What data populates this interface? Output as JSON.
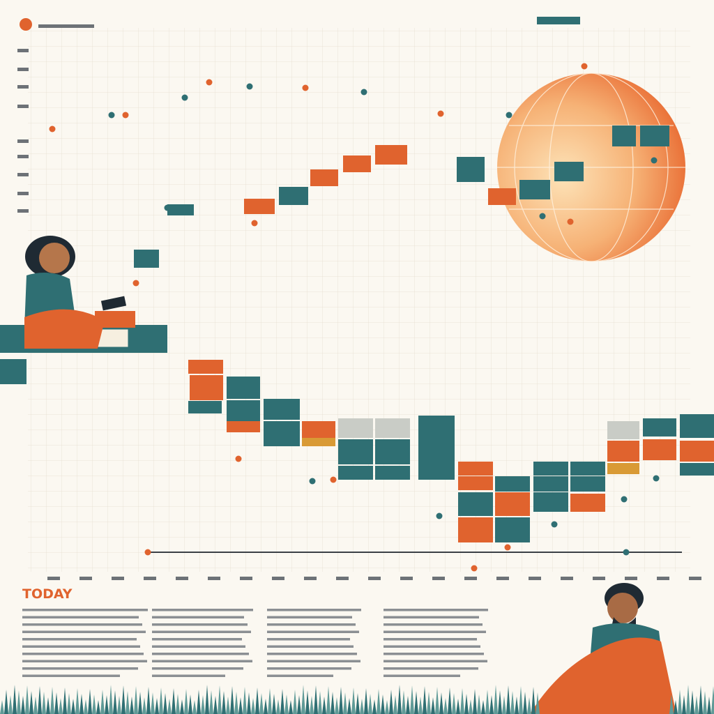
{
  "heading": "TODAY"
}
